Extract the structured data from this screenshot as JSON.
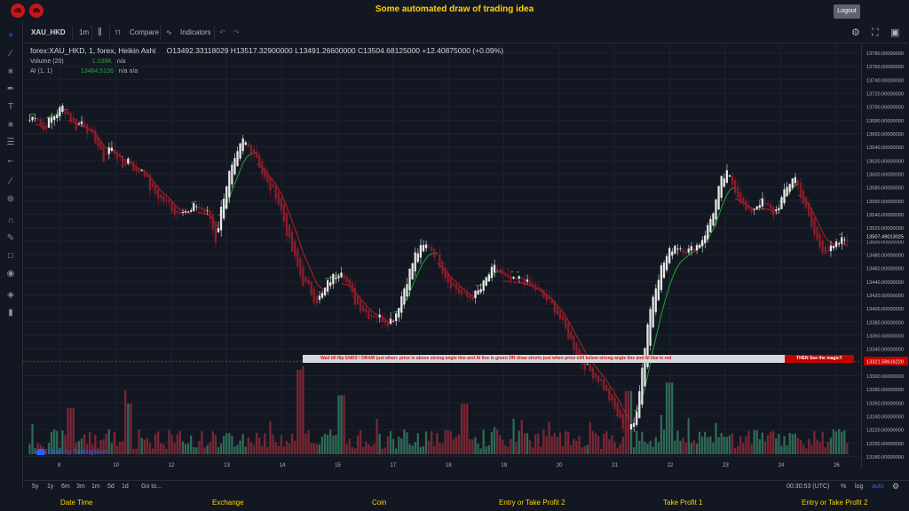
{
  "header": {
    "title": "Some automated draw of trading idea",
    "logout_label": "Logout"
  },
  "toolbar": {
    "symbol": "XAU_HKD",
    "interval": "1m",
    "compare_label": "Compare",
    "indicators_label": "Indicators"
  },
  "legend": {
    "series_name": "forex:XAU_HKD, 1, forex, Heikin Ashi",
    "ohlc": "O13492.33118029  H13517.32900000  L13491.26600000  C13504.68125000  +12.40875000 (+0.09%)",
    "volume_label": "Volume (20)",
    "volume_value": "1.038K",
    "volume_na": "n/a",
    "ai_label": "AI (1, 1)",
    "ai_value": "13484.5136",
    "ai_na": "n/a  n/a"
  },
  "price_axis": {
    "ticks": [
      "13780.00000000",
      "13760.00000000",
      "13740.00000000",
      "13720.00000000",
      "13700.00000000",
      "13680.00000000",
      "13660.00000000",
      "13640.00000000",
      "13620.00000000",
      "13600.00000000",
      "13580.00000000",
      "13560.00000000",
      "13540.00000000",
      "13520.00000000",
      "13500.00000000",
      "13480.00000000",
      "13460.00000000",
      "13440.00000000",
      "13420.00000000",
      "13400.00000000",
      "13380.00000000",
      "13360.00000000",
      "13340.00000000",
      "13320.00000000",
      "13300.00000000",
      "13280.00000000",
      "13260.00000000",
      "13240.00000000",
      "13220.00000000",
      "13200.00000000",
      "13180.00000000"
    ],
    "current_price": "13507.49013025",
    "line_price": "13321.58616220"
  },
  "time_axis": {
    "ticks": [
      "8",
      "10",
      "12",
      "13",
      "14",
      "15",
      "17",
      "18",
      "19",
      "20",
      "21",
      "22",
      "23",
      "24",
      "26"
    ]
  },
  "annotation": {
    "text": "Wait till flip ENDS  !   DRAW just when:  price is above strong angle line and AI line is green       OR       draw shorts just when price still below strong angle line and AI line is red",
    "highlight": "THEN See the magic!!"
  },
  "watermark": "Chart by TradingView",
  "bottom": {
    "ranges": [
      "5y",
      "1y",
      "6m",
      "3m",
      "1m",
      "5d",
      "1d"
    ],
    "goto": "Go to...",
    "clock": "00:30:53 (UTC)",
    "pct": "%",
    "log": "log",
    "auto": "auto"
  },
  "footer": {
    "items": [
      "Date Time",
      "Exchange",
      "Coin",
      "Entry or Take Profit 2",
      "Take Profit 1",
      "Entry or Take Profit 2"
    ]
  },
  "colors": {
    "up": "#e8e8e8",
    "down": "#8e1c2a",
    "vol_up": "#2f6b57",
    "vol_down": "#7a2734",
    "ai_green": "#1e9e2a",
    "ai_red": "#b21f24",
    "accent": "#ffd400"
  },
  "chart_data": {
    "type": "candlestick",
    "ylim": [
      13170,
      13790
    ],
    "x_ticks": [
      "8",
      "10",
      "12",
      "13",
      "14",
      "15",
      "17",
      "18",
      "19",
      "20",
      "21",
      "22",
      "23",
      "24",
      "26"
    ],
    "close_path": [
      13680,
      13690,
      13665,
      13680,
      13690,
      13700,
      13685,
      13670,
      13680,
      13660,
      13650,
      13620,
      13640,
      13630,
      13610,
      13625,
      13600,
      13610,
      13580,
      13570,
      13560,
      13555,
      13540,
      13550,
      13540,
      13555,
      13545,
      13540,
      13500,
      13560,
      13600,
      13620,
      13650,
      13640,
      13630,
      13600,
      13580,
      13570,
      13540,
      13500,
      13470,
      13440,
      13430,
      13410,
      13420,
      13440,
      13450,
      13460,
      13430,
      13410,
      13400,
      13390,
      13390,
      13385,
      13380,
      13390,
      13420,
      13450,
      13480,
      13490,
      13495,
      13480,
      13460,
      13440,
      13430,
      13420,
      13415,
      13420,
      13430,
      13450,
      13460,
      13450,
      13440,
      13440,
      13445,
      13435,
      13430,
      13420,
      13410,
      13400,
      13380,
      13360,
      13340,
      13320,
      13310,
      13300,
      13290,
      13270,
      13250,
      13230,
      13215,
      13230,
      13300,
      13380,
      13430,
      13460,
      13480,
      13495,
      13490,
      13485,
      13490,
      13500,
      13520,
      13550,
      13590,
      13600,
      13580,
      13560,
      13540,
      13550,
      13560,
      13550,
      13540,
      13560,
      13580,
      13600,
      13570,
      13540,
      13510,
      13490,
      13485,
      13490,
      13500,
      13505
    ],
    "volume_spikes": [
      [
        0.33,
        100
      ],
      [
        0.05,
        55
      ],
      [
        0.12,
        60
      ],
      [
        0.38,
        70
      ],
      [
        0.53,
        60
      ],
      [
        0.73,
        75
      ],
      [
        0.78,
        85
      ]
    ]
  }
}
